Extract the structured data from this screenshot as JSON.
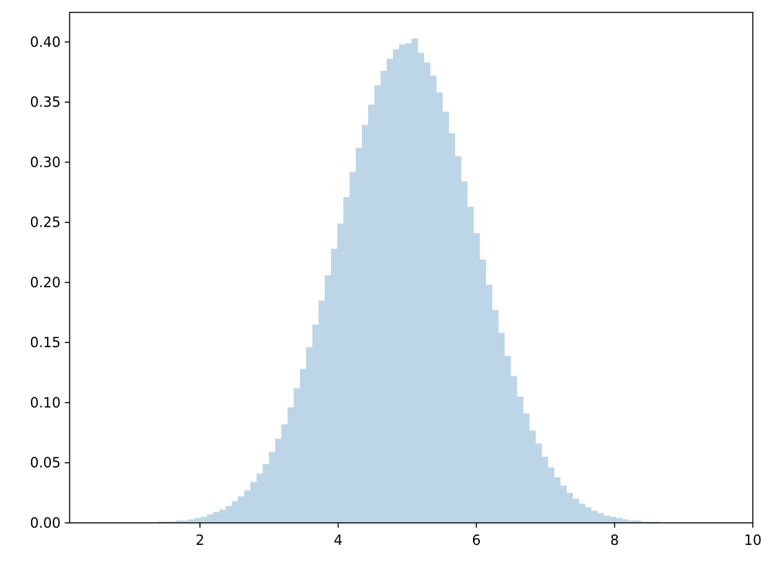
{
  "chart_data": {
    "type": "bar",
    "subtype": "histogram",
    "title": "",
    "xlabel": "",
    "ylabel": "",
    "xlim": [
      0.114,
      10
    ],
    "ylim": [
      0,
      0.4246
    ],
    "grid": false,
    "bar_color": "#bcd6e8",
    "bin_edges_start": 1.384,
    "bin_width": 0.0897,
    "values": [
      0.001,
      0.001,
      0.001,
      0.002,
      0.002,
      0.003,
      0.004,
      0.005,
      0.007,
      0.009,
      0.011,
      0.014,
      0.018,
      0.022,
      0.027,
      0.034,
      0.041,
      0.049,
      0.059,
      0.07,
      0.082,
      0.096,
      0.112,
      0.128,
      0.146,
      0.165,
      0.185,
      0.206,
      0.228,
      0.249,
      0.271,
      0.292,
      0.312,
      0.331,
      0.348,
      0.364,
      0.376,
      0.386,
      0.394,
      0.398,
      0.399,
      0.403,
      0.391,
      0.383,
      0.372,
      0.358,
      0.342,
      0.324,
      0.305,
      0.284,
      0.263,
      0.241,
      0.219,
      0.198,
      0.177,
      0.158,
      0.139,
      0.122,
      0.105,
      0.091,
      0.077,
      0.066,
      0.055,
      0.046,
      0.038,
      0.031,
      0.025,
      0.02,
      0.016,
      0.013,
      0.01,
      0.008,
      0.006,
      0.005,
      0.004,
      0.003,
      0.002,
      0.002,
      0.001,
      0.001,
      0.001
    ],
    "x_ticks": [
      {
        "value": 2,
        "label": "2"
      },
      {
        "value": 4,
        "label": "4"
      },
      {
        "value": 6,
        "label": "6"
      },
      {
        "value": 8,
        "label": "8"
      },
      {
        "value": 10,
        "label": "10"
      }
    ],
    "y_ticks": [
      {
        "value": 0.0,
        "label": "0.00"
      },
      {
        "value": 0.05,
        "label": "0.05"
      },
      {
        "value": 0.1,
        "label": "0.10"
      },
      {
        "value": 0.15,
        "label": "0.15"
      },
      {
        "value": 0.2,
        "label": "0.20"
      },
      {
        "value": 0.25,
        "label": "0.25"
      },
      {
        "value": 0.3,
        "label": "0.30"
      },
      {
        "value": 0.35,
        "label": "0.35"
      },
      {
        "value": 0.4,
        "label": "0.40"
      }
    ]
  }
}
